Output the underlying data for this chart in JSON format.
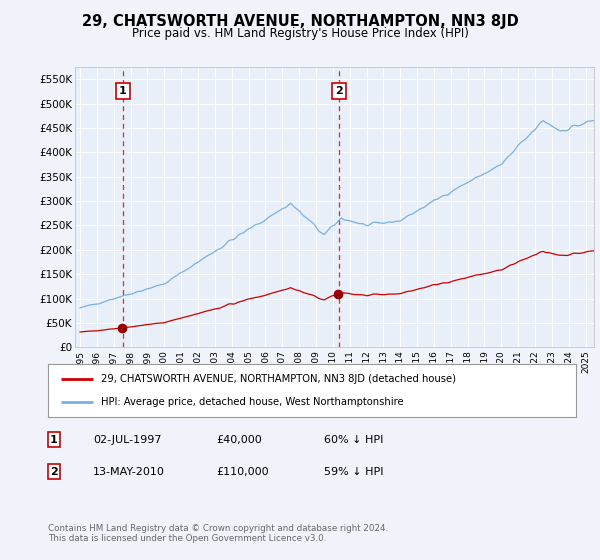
{
  "title": "29, CHATSWORTH AVENUE, NORTHAMPTON, NN3 8JD",
  "subtitle": "Price paid vs. HM Land Registry's House Price Index (HPI)",
  "bg_color": "#f0f4fa",
  "plot_bg_color": "#e8eff8",
  "grid_color": "#ffffff",
  "sale1_date": 1997.54,
  "sale1_price": 40000,
  "sale1_label": "1",
  "sale2_date": 2010.37,
  "sale2_price": 110000,
  "sale2_label": "2",
  "legend_line1": "29, CHATSWORTH AVENUE, NORTHAMPTON, NN3 8JD (detached house)",
  "legend_line2": "HPI: Average price, detached house, West Northamptonshire",
  "table_row1": [
    "1",
    "02-JUL-1997",
    "£40,000",
    "60% ↓ HPI"
  ],
  "table_row2": [
    "2",
    "13-MAY-2010",
    "£110,000",
    "59% ↓ HPI"
  ],
  "footnote": "Contains HM Land Registry data © Crown copyright and database right 2024.\nThis data is licensed under the Open Government Licence v3.0.",
  "ylim": [
    0,
    575000
  ],
  "xlim": [
    1994.7,
    2025.5
  ],
  "yticks": [
    0,
    50000,
    100000,
    150000,
    200000,
    250000,
    300000,
    350000,
    400000,
    450000,
    500000,
    550000
  ],
  "ytick_labels": [
    "£0",
    "£50K",
    "£100K",
    "£150K",
    "£200K",
    "£250K",
    "£300K",
    "£350K",
    "£400K",
    "£450K",
    "£500K",
    "£550K"
  ],
  "xtick_years": [
    1995,
    1996,
    1997,
    1998,
    1999,
    2000,
    2001,
    2002,
    2003,
    2004,
    2005,
    2006,
    2007,
    2008,
    2009,
    2010,
    2011,
    2012,
    2013,
    2014,
    2015,
    2016,
    2017,
    2018,
    2019,
    2020,
    2021,
    2022,
    2023,
    2024,
    2025
  ],
  "hpi_color": "#7ab0e0",
  "sale_color": "#cc0000",
  "dot_color": "#990000"
}
